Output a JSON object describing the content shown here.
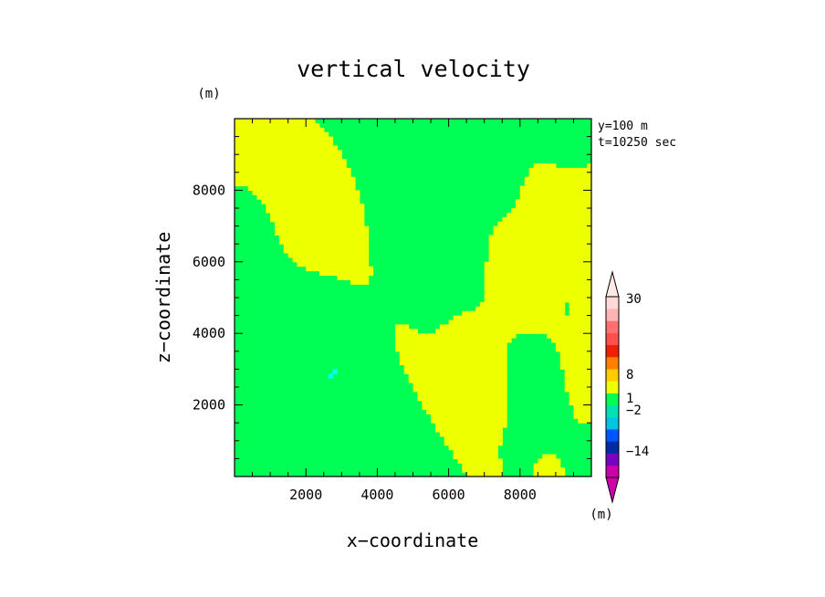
{
  "chart_data": {
    "type": "heatmap",
    "title": "vertical velocity",
    "xlabel": "x−coordinate",
    "ylabel": "z−coordinate",
    "y_unit": "(m)",
    "x_unit": "(m)",
    "info_lines": [
      "y=100 m",
      "t=10250 sec"
    ],
    "xlim": [
      0,
      10000
    ],
    "ylim": [
      0,
      10000
    ],
    "xticks": [
      2000,
      4000,
      6000,
      8000
    ],
    "yticks": [
      2000,
      4000,
      6000,
      8000
    ],
    "xtick_labels": [
      "2000",
      "4000",
      "6000",
      "8000"
    ],
    "ytick_labels": [
      "2000",
      "4000",
      "6000",
      "8000"
    ],
    "colorbar": {
      "labels": [
        {
          "text": "30",
          "level": 30
        },
        {
          "text": "8",
          "level": 8
        },
        {
          "text": "1",
          "level": 1
        },
        {
          "text": "−2",
          "level": -2
        },
        {
          "text": "−14",
          "level": -14
        }
      ],
      "colors": [
        "#cc00aa",
        "#7a00c0",
        "#002aa0",
        "#0055ff",
        "#00c4e0",
        "#00e0b0",
        "#00ff55",
        "#eeff00",
        "#ffcc00",
        "#ff8000",
        "#ee2000",
        "#ff5050",
        "#ff7070",
        "#ffb4b4",
        "#ffd8d8"
      ]
    },
    "dominant_levels": {
      "green": "#00ff55",
      "yellow": "#eeff00",
      "orange": "#ffb000",
      "cyan": "#00ffee"
    }
  }
}
